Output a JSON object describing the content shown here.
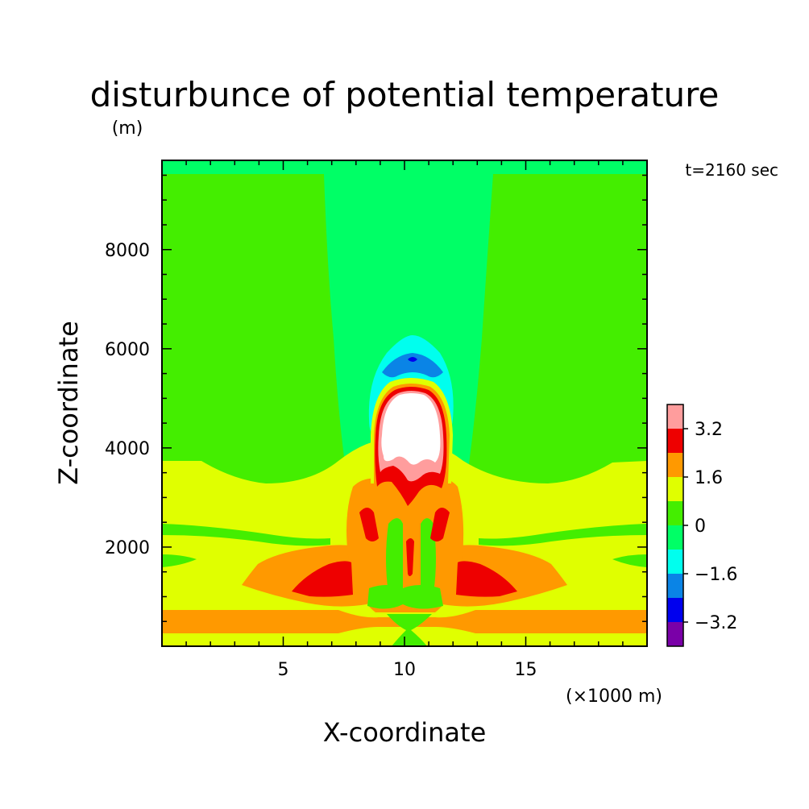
{
  "chart_data": {
    "type": "heatmap",
    "title": "disturbunce of potential temperature",
    "ylabel": "Z-coordinate",
    "ylabel_unit": "(m)",
    "xlabel": "X-coordinate",
    "xlabel_unit": "(×1000 m)",
    "time_label": "t=2160 sec",
    "xlim": [
      0,
      20
    ],
    "ylim": [
      0,
      9800
    ],
    "x_ticks": [
      {
        "value": 5,
        "label": "5"
      },
      {
        "value": 10,
        "label": "10"
      },
      {
        "value": 15,
        "label": "15"
      }
    ],
    "y_ticks": [
      {
        "value": 2000,
        "label": "2000"
      },
      {
        "value": 4000,
        "label": "4000"
      },
      {
        "value": 6000,
        "label": "6000"
      },
      {
        "value": 8000,
        "label": "8000"
      }
    ],
    "colorbar": {
      "levels": [
        -4.0,
        -3.2,
        -2.4,
        -1.6,
        -0.8,
        0,
        0.8,
        1.6,
        2.4,
        3.2,
        4.0
      ],
      "colors": [
        "#7a00a8",
        "#0000ee",
        "#0a84e6",
        "#00ffee",
        "#00ff66",
        "#44ee00",
        "#e0ff00",
        "#ff9900",
        "#ee0000",
        "#ff9d9d"
      ],
      "tick_labels": [
        {
          "value": -3.2,
          "label": "−3.2"
        },
        {
          "value": -1.6,
          "label": "−1.6"
        },
        {
          "value": 0,
          "label": "0"
        },
        {
          "value": 1.6,
          "label": "1.6"
        },
        {
          "value": 3.2,
          "label": "3.2"
        }
      ]
    },
    "regions": [
      {
        "level": 0.4,
        "x": [
          0,
          20
        ],
        "z": [
          0,
          9800
        ]
      },
      {
        "level": -0.4,
        "x": [
          0,
          20
        ],
        "z": [
          9600,
          9800
        ]
      },
      {
        "level": -0.4,
        "x": [
          6.8,
          13.4
        ],
        "z": [
          4300,
          9600
        ]
      },
      {
        "level": 1.2,
        "x": [
          0,
          20
        ],
        "z": [
          0,
          3800
        ]
      },
      {
        "level": 0.4,
        "x": [
          0,
          1.6
        ],
        "z": [
          2300,
          2600
        ]
      },
      {
        "level": 0.4,
        "x": [
          17.8,
          20
        ],
        "z": [
          2300,
          2600
        ]
      },
      {
        "level": 2.0,
        "x": [
          0,
          20
        ],
        "z": [
          200,
          750
        ]
      },
      {
        "level": 2.0,
        "x": [
          4.0,
          16.0
        ],
        "z": [
          1000,
          1900
        ]
      },
      {
        "level": 2.0,
        "x": [
          7.8,
          12.3
        ],
        "z": [
          1600,
          3600
        ]
      },
      {
        "level": 2.8,
        "x": [
          5.3,
          8.0
        ],
        "z": [
          1100,
          1800
        ]
      },
      {
        "level": 2.8,
        "x": [
          12.7,
          15.4
        ],
        "z": [
          1100,
          1800
        ]
      },
      {
        "level": 2.8,
        "x": [
          8.0,
          8.9
        ],
        "z": [
          2100,
          3000
        ]
      },
      {
        "level": 2.8,
        "x": [
          11.5,
          12.3
        ],
        "z": [
          2100,
          3000
        ]
      },
      {
        "level": 0.4,
        "x": [
          9.0,
          11.2
        ],
        "z": [
          0,
          3000
        ]
      },
      {
        "level": -1.2,
        "x": [
          8.5,
          11.8
        ],
        "z": [
          4500,
          6400
        ]
      },
      {
        "level": -2.0,
        "x": [
          9.2,
          11.1
        ],
        "z": [
          5500,
          5950
        ]
      },
      {
        "level": 2.8,
        "x": [
          8.7,
          11.6
        ],
        "z": [
          3200,
          5450
        ]
      },
      {
        "level": 3.6,
        "x": [
          9.0,
          11.4
        ],
        "z": [
          3500,
          5250
        ]
      },
      {
        "level": 4.4,
        "x": [
          9.2,
          11.2
        ],
        "z": [
          3800,
          5200
        ]
      }
    ]
  }
}
